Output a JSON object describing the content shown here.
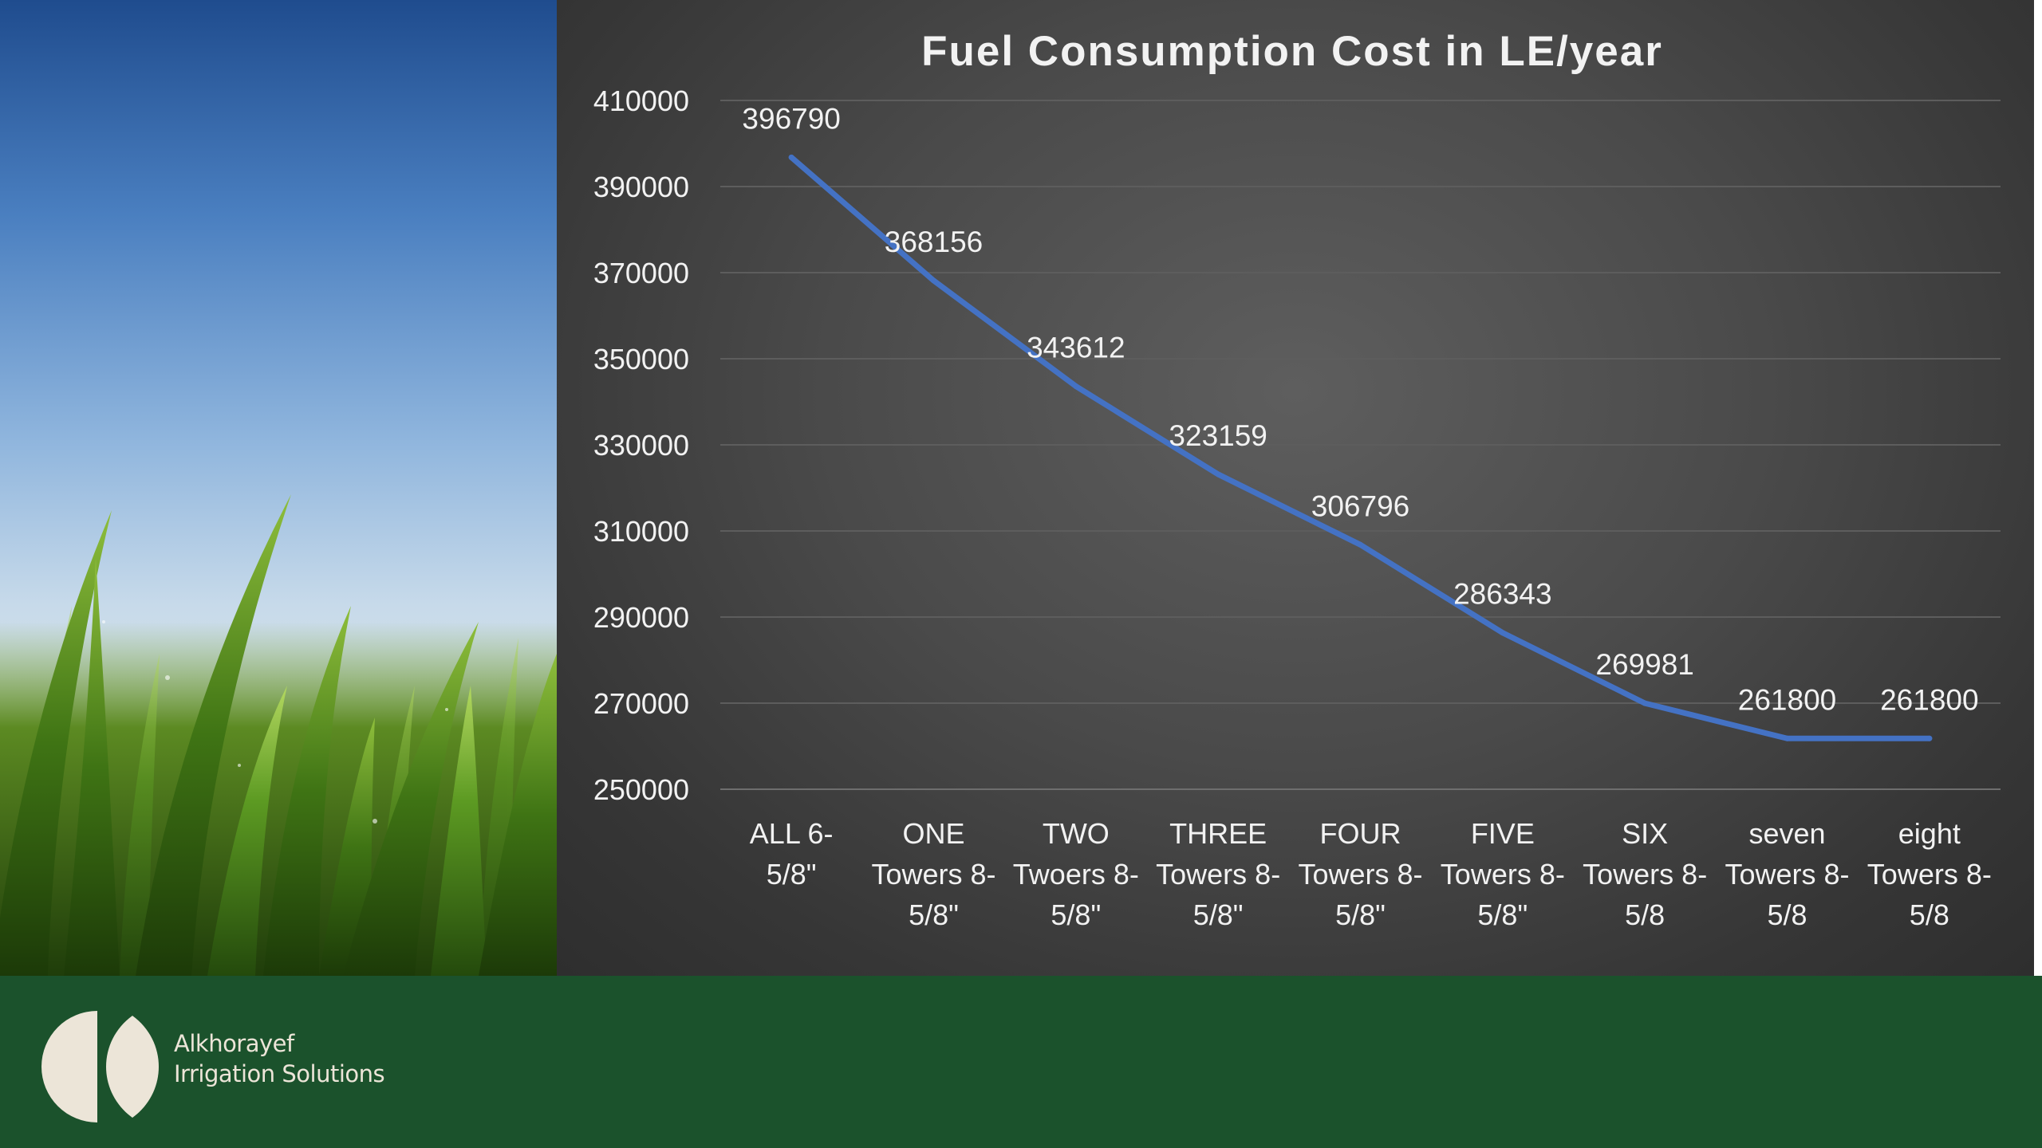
{
  "footer": {
    "brand_line1": "Alkhorayef",
    "brand_line2": "Irrigation Solutions"
  },
  "colors": {
    "line": "#4472c4",
    "footer": "#1b522c",
    "chart_text": "#f2f2f2",
    "logo": "#ece5d8"
  },
  "chart_data": {
    "type": "line",
    "title": "Fuel Consumption Cost in LE/year",
    "xlabel": "",
    "ylabel": "",
    "categories": [
      [
        "ALL 6-",
        "5/8\""
      ],
      [
        "ONE",
        "Towers 8-",
        "5/8\""
      ],
      [
        "TWO",
        "Twoers 8-",
        "5/8\""
      ],
      [
        "THREE",
        "Towers 8-",
        "5/8\""
      ],
      [
        "FOUR",
        "Towers 8-",
        "5/8\""
      ],
      [
        "FIVE",
        "Towers 8-",
        "5/8\""
      ],
      [
        "SIX",
        "Towers 8-",
        "5/8"
      ],
      [
        "seven",
        "Towers 8-",
        "5/8"
      ],
      [
        "eight",
        "Towers 8-",
        "5/8"
      ]
    ],
    "series": [
      {
        "values": [
          396790,
          368156,
          343612,
          323159,
          306796,
          286343,
          269981,
          261800,
          261800
        ]
      }
    ],
    "ylim": [
      250000,
      410000
    ],
    "yticks": [
      410000,
      390000,
      370000,
      350000,
      330000,
      310000,
      290000,
      270000,
      250000
    ],
    "grid": true,
    "legend": "none",
    "data_labels": true
  }
}
